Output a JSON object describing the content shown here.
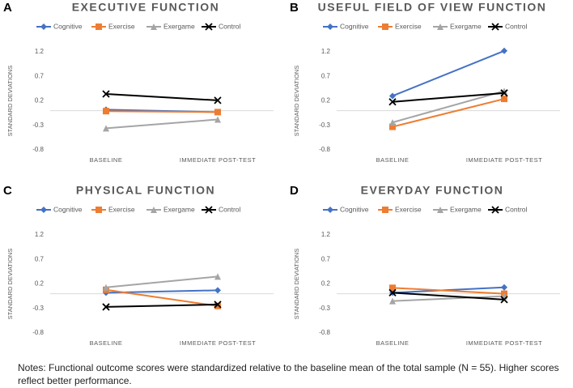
{
  "chart_data": [
    {
      "type": "line",
      "panel": "A",
      "title": "EXECUTIVE FUNCTION",
      "ylabel": "STANDARD DEVIATIONS",
      "categories": [
        "BASELINE",
        "IMMEDIATE POST-TEST"
      ],
      "ylim": [
        -0.8,
        1.2
      ],
      "yticks": [
        -0.8,
        -0.3,
        0.2,
        0.7,
        1.2
      ],
      "series": [
        {
          "name": "Cognitive",
          "color": "#4472c4",
          "marker": "diamond",
          "values": [
            0.02,
            -0.03
          ]
        },
        {
          "name": "Exercise",
          "color": "#ed7d31",
          "marker": "square",
          "values": [
            -0.01,
            -0.03
          ]
        },
        {
          "name": "Exergame",
          "color": "#a5a5a5",
          "marker": "triangle",
          "values": [
            -0.36,
            -0.18
          ]
        },
        {
          "name": "Control",
          "color": "#000000",
          "marker": "x",
          "values": [
            0.34,
            0.21
          ]
        }
      ]
    },
    {
      "type": "line",
      "panel": "B",
      "title": "USEFUL FIELD OF VIEW FUNCTION",
      "ylabel": "STANDARD DEVIATIONS",
      "categories": [
        "BASELINE",
        "IMMEDIATE POST-TEST"
      ],
      "ylim": [
        -0.8,
        1.2
      ],
      "yticks": [
        -0.8,
        -0.3,
        0.2,
        0.7,
        1.2
      ],
      "series": [
        {
          "name": "Cognitive",
          "color": "#4472c4",
          "marker": "diamond",
          "values": [
            0.3,
            1.22
          ]
        },
        {
          "name": "Exercise",
          "color": "#ed7d31",
          "marker": "square",
          "values": [
            -0.33,
            0.24
          ]
        },
        {
          "name": "Exergame",
          "color": "#a5a5a5",
          "marker": "triangle",
          "values": [
            -0.24,
            0.4
          ]
        },
        {
          "name": "Control",
          "color": "#000000",
          "marker": "x",
          "values": [
            0.18,
            0.36
          ]
        }
      ]
    },
    {
      "type": "line",
      "panel": "C",
      "title": "PHYSICAL FUNCTION",
      "ylabel": "STANDARD DEVIATIONS",
      "categories": [
        "BASELINE",
        "IMMEDIATE POST-TEST"
      ],
      "ylim": [
        -0.8,
        1.2
      ],
      "yticks": [
        -0.8,
        -0.3,
        0.2,
        0.7,
        1.2
      ],
      "series": [
        {
          "name": "Cognitive",
          "color": "#4472c4",
          "marker": "diamond",
          "values": [
            0.02,
            0.07
          ]
        },
        {
          "name": "Exercise",
          "color": "#ed7d31",
          "marker": "square",
          "values": [
            0.08,
            -0.25
          ]
        },
        {
          "name": "Exergame",
          "color": "#a5a5a5",
          "marker": "triangle",
          "values": [
            0.13,
            0.35
          ]
        },
        {
          "name": "Control",
          "color": "#000000",
          "marker": "x",
          "values": [
            -0.27,
            -0.22
          ]
        }
      ]
    },
    {
      "type": "line",
      "panel": "D",
      "title": "EVERYDAY FUNCTION",
      "ylabel": "STANDARD DEVIATIONS",
      "categories": [
        "BASELINE",
        "IMMEDIATE POST-TEST"
      ],
      "ylim": [
        -0.8,
        1.2
      ],
      "yticks": [
        -0.8,
        -0.3,
        0.2,
        0.7,
        1.2
      ],
      "series": [
        {
          "name": "Cognitive",
          "color": "#4472c4",
          "marker": "diamond",
          "values": [
            0.02,
            0.13
          ]
        },
        {
          "name": "Exercise",
          "color": "#ed7d31",
          "marker": "square",
          "values": [
            0.12,
            0.0
          ]
        },
        {
          "name": "Exergame",
          "color": "#a5a5a5",
          "marker": "triangle",
          "values": [
            -0.15,
            -0.05
          ]
        },
        {
          "name": "Control",
          "color": "#000000",
          "marker": "x",
          "values": [
            0.02,
            -0.12
          ]
        }
      ]
    }
  ],
  "notes": "Notes: Functional outcome scores were standardized relative to the baseline mean of the total sample (N = 55). Higher scores reflect better performance."
}
